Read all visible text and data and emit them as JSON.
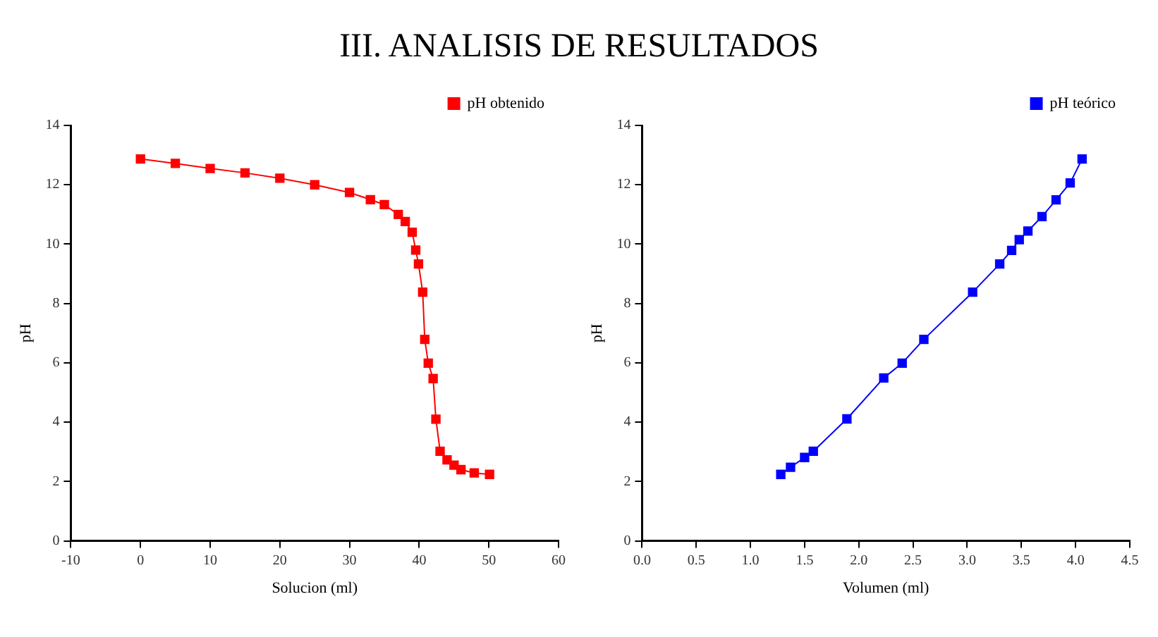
{
  "chart_data": [
    {
      "type": "line",
      "title": "III. ANALISIS DE RESULTADOS",
      "xlabel": "Solucion (ml)",
      "ylabel": "pH",
      "xlim": [
        -10,
        60
      ],
      "xticks": [
        -10,
        0,
        10,
        20,
        30,
        40,
        50,
        60
      ],
      "ylim": [
        0,
        14
      ],
      "yticks": [
        0,
        2,
        4,
        6,
        8,
        10,
        12,
        14
      ],
      "grid": false,
      "legend": "top right",
      "marker": "square",
      "series": [
        {
          "name": "pH obtenido",
          "color": "#ff0000",
          "x": [
            0,
            5,
            10,
            15,
            20,
            25,
            30,
            33,
            35,
            37,
            38,
            39,
            39.5,
            39.9,
            40.5,
            40.8,
            41.3,
            42.0,
            42.4,
            43.0,
            44.0,
            45,
            46.0,
            47.9,
            50.1
          ],
          "values": [
            12.87,
            12.72,
            12.55,
            12.4,
            12.22,
            12.0,
            11.74,
            11.5,
            11.33,
            11.0,
            10.76,
            10.4,
            9.8,
            9.33,
            8.38,
            6.79,
            5.99,
            5.47,
            4.1,
            3.02,
            2.73,
            2.55,
            2.4,
            2.29,
            2.24
          ]
        }
      ]
    },
    {
      "type": "line",
      "xlabel": "Volumen (ml)",
      "ylabel": "pH",
      "xlim": [
        0,
        4.5
      ],
      "xticks": [
        {
          "value": 0,
          "label": "0.0"
        },
        0.5,
        {
          "value": 1,
          "label": "1.0"
        },
        1.5,
        {
          "value": 2,
          "label": "2.0"
        },
        2.5,
        {
          "value": 3,
          "label": "3.0"
        },
        3.5,
        {
          "value": 4,
          "label": "4.0"
        },
        4.5
      ],
      "ylim": [
        0,
        14
      ],
      "yticks": [
        0,
        2,
        4,
        6,
        8,
        10,
        12,
        14
      ],
      "grid": false,
      "legend": "top right",
      "marker": "square",
      "series": [
        {
          "name": "pH teórico",
          "color": "#0000ff",
          "x": [
            1.28,
            1.37,
            1.5,
            1.58,
            1.89,
            2.23,
            2.4,
            2.6,
            3.05,
            3.3,
            3.41,
            3.48,
            3.56,
            3.69,
            3.82,
            3.95,
            4.06
          ],
          "values": [
            2.24,
            2.48,
            2.81,
            3.02,
            4.11,
            5.49,
            5.99,
            6.79,
            8.38,
            9.33,
            9.79,
            10.15,
            10.44,
            10.93,
            11.49,
            12.06,
            12.87
          ]
        }
      ]
    }
  ]
}
